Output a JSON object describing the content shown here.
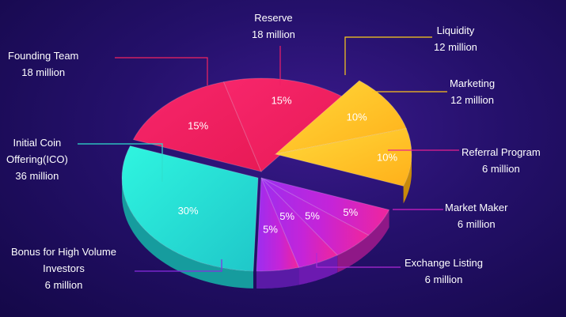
{
  "chart_data": {
    "type": "pie",
    "title": "",
    "units_label": "million",
    "slices": [
      {
        "label": "Founding Team",
        "amount": "18 million",
        "value": 15,
        "pct_label": "15%"
      },
      {
        "label": "Reserve",
        "amount": "18 million",
        "value": 15,
        "pct_label": "15%"
      },
      {
        "label": "Liquidity",
        "amount": "12 million",
        "value": 10,
        "pct_label": "10%"
      },
      {
        "label": "Marketing",
        "amount": "12 million",
        "value": 10,
        "pct_label": "10%"
      },
      {
        "label": "Referral Program",
        "amount": "6 million",
        "value": 5,
        "pct_label": "5%"
      },
      {
        "label": "Market Maker",
        "amount": "6 million",
        "value": 5,
        "pct_label": "5%"
      },
      {
        "label": "Exchange Listing",
        "amount": "6 million",
        "value": 5,
        "pct_label": "5%"
      },
      {
        "label": "Bonus for High Volume Investors",
        "amount": "6 million",
        "value": 5,
        "pct_label": "5%"
      },
      {
        "label": "Initial Coin Offering(ICO)",
        "amount": "36 million",
        "value": 30,
        "pct_label": "30%"
      }
    ]
  },
  "colors": {
    "background": "#1c0d5c",
    "founding_team": "#f2245f",
    "reserve": "#f01f66",
    "liquidity": "#ffcd1a",
    "marketing": "#ffc21a",
    "magenta_group": "#d41fc7",
    "bonus": "#8a2be2",
    "ico": "#2ee0cf"
  },
  "labels": {
    "founding_team": {
      "line1": "Founding Team",
      "line2": "18 million"
    },
    "reserve": {
      "line1": "Reserve",
      "line2": "18 million"
    },
    "liquidity": {
      "line1": "Liquidity",
      "line2": "12 million"
    },
    "marketing": {
      "line1": "Marketing",
      "line2": "12 million"
    },
    "referral": {
      "line1": "Referral Program",
      "line2": "6 million"
    },
    "market_maker": {
      "line1": "Market Maker",
      "line2": "6 million"
    },
    "exchange": {
      "line1": "Exchange Listing",
      "line2": "6 million"
    },
    "bonus": {
      "line1": "Bonus for High Volume",
      "line2": "Investors",
      "line3": "6 million"
    },
    "ico": {
      "line1": "Initial Coin",
      "line2": "Offering(ICO)",
      "line3": "36 million"
    }
  }
}
